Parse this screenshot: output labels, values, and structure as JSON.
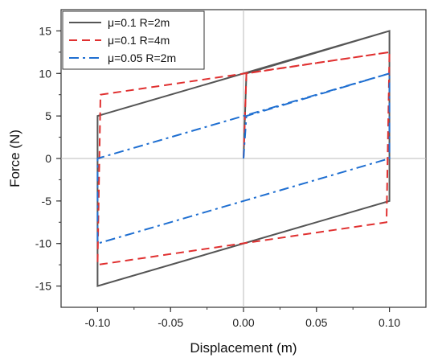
{
  "chart_data": {
    "type": "line",
    "title": "",
    "xlabel": "Displacement (m)",
    "ylabel": "Force (N)",
    "xlim": [
      -0.125,
      0.125
    ],
    "ylim": [
      -17.5,
      17.5
    ],
    "xticks": [
      -0.1,
      -0.05,
      0.0,
      0.05,
      0.1
    ],
    "xtick_labels": [
      "-0.10",
      "-0.05",
      "0.00",
      "0.05",
      "0.10"
    ],
    "yticks": [
      -15,
      -10,
      -5,
      0,
      5,
      10,
      15
    ],
    "ytick_labels": [
      "-15",
      "-10",
      "-5",
      "0",
      "5",
      "10",
      "15"
    ],
    "grid": false,
    "legend_position": "top-left",
    "series": [
      {
        "name": "μ=0.1   R=2m",
        "color": "#555555",
        "dash": "solid",
        "x": [
          0.0,
          0.002,
          0.1,
          0.1,
          -0.1,
          -0.1,
          0.1,
          0.1
        ],
        "y": [
          0.0,
          10.0,
          15.0,
          -5.0,
          -15.0,
          5.0,
          15.0,
          -5.0
        ]
      },
      {
        "name": "μ=0.1   R=4m",
        "color": "#e03030",
        "dash": "dashed",
        "x": [
          0.0,
          0.002,
          0.1,
          0.098,
          -0.1,
          -0.098,
          0.1
        ],
        "y": [
          0.0,
          10.0,
          12.5,
          -7.5,
          -12.5,
          7.5,
          12.5
        ]
      },
      {
        "name": "μ=0.05 R=2m",
        "color": "#1f6fd1",
        "dash": "dashdot",
        "x": [
          0.0,
          0.002,
          0.1,
          0.1,
          -0.1,
          -0.1,
          0.1
        ],
        "y": [
          0.0,
          5.0,
          10.0,
          0.0,
          -10.0,
          0.0,
          10.0
        ]
      }
    ]
  }
}
